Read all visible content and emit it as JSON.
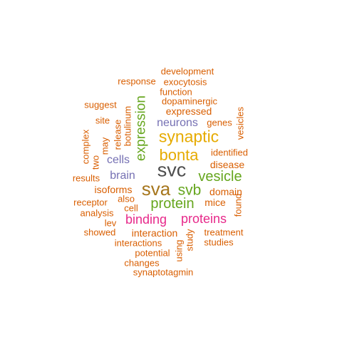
{
  "colors": {
    "orange": "#d95f02",
    "purple": "#7570b3",
    "green": "#66a61e",
    "gold": "#e6ab02",
    "gray": "#4d4d4d",
    "brown": "#a6761d",
    "magenta": "#e7298a"
  },
  "words": [
    {
      "text": "development",
      "color": "orange"
    },
    {
      "text": "response",
      "color": "orange"
    },
    {
      "text": "exocytosis",
      "color": "orange"
    },
    {
      "text": "function",
      "color": "orange"
    },
    {
      "text": "dopaminergic",
      "color": "orange"
    },
    {
      "text": "suggest",
      "color": "orange"
    },
    {
      "text": "expressed",
      "color": "orange"
    },
    {
      "text": "vesicles",
      "color": "orange"
    },
    {
      "text": "site",
      "color": "orange"
    },
    {
      "text": "neurons",
      "color": "purple"
    },
    {
      "text": "genes",
      "color": "orange"
    },
    {
      "text": "expression",
      "color": "green"
    },
    {
      "text": "botulinum",
      "color": "orange"
    },
    {
      "text": "release",
      "color": "orange"
    },
    {
      "text": "complex",
      "color": "orange"
    },
    {
      "text": "may",
      "color": "orange"
    },
    {
      "text": "synaptic",
      "color": "gold"
    },
    {
      "text": "identified",
      "color": "orange"
    },
    {
      "text": "bonta",
      "color": "gold"
    },
    {
      "text": "two",
      "color": "orange"
    },
    {
      "text": "cells",
      "color": "purple"
    },
    {
      "text": "disease",
      "color": "orange"
    },
    {
      "text": "svc",
      "color": "gray"
    },
    {
      "text": "results",
      "color": "orange"
    },
    {
      "text": "brain",
      "color": "purple"
    },
    {
      "text": "vesicle",
      "color": "green"
    },
    {
      "text": "isoforms",
      "color": "orange"
    },
    {
      "text": "sva",
      "color": "brown"
    },
    {
      "text": "svb",
      "color": "green"
    },
    {
      "text": "domain",
      "color": "orange"
    },
    {
      "text": "receptor",
      "color": "orange"
    },
    {
      "text": "also",
      "color": "orange"
    },
    {
      "text": "protein",
      "color": "green"
    },
    {
      "text": "mice",
      "color": "orange"
    },
    {
      "text": "found",
      "color": "orange"
    },
    {
      "text": "analysis",
      "color": "orange"
    },
    {
      "text": "cell",
      "color": "orange"
    },
    {
      "text": "binding",
      "color": "magenta"
    },
    {
      "text": "proteins",
      "color": "magenta"
    },
    {
      "text": "lev",
      "color": "orange"
    },
    {
      "text": "showed",
      "color": "orange"
    },
    {
      "text": "interaction",
      "color": "orange"
    },
    {
      "text": "study",
      "color": "orange"
    },
    {
      "text": "treatment",
      "color": "orange"
    },
    {
      "text": "interactions",
      "color": "orange"
    },
    {
      "text": "using",
      "color": "orange"
    },
    {
      "text": "studies",
      "color": "orange"
    },
    {
      "text": "potential",
      "color": "orange"
    },
    {
      "text": "changes",
      "color": "orange"
    },
    {
      "text": "synaptotagmin",
      "color": "orange"
    }
  ]
}
